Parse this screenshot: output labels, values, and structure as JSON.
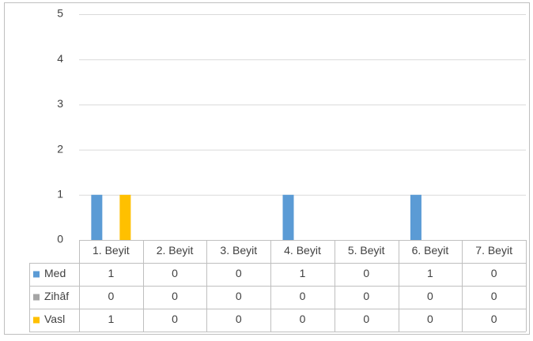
{
  "chart_data": {
    "type": "bar",
    "categories": [
      "1. Beyit",
      "2. Beyit",
      "3. Beyit",
      "4. Beyit",
      "5. Beyit",
      "6. Beyit",
      "7. Beyit"
    ],
    "series": [
      {
        "name": "Med",
        "color": "#5b9bd5",
        "values": [
          1,
          0,
          0,
          1,
          0,
          1,
          0
        ]
      },
      {
        "name": "Zihâf",
        "color": "#a5a5a5",
        "values": [
          0,
          0,
          0,
          0,
          0,
          0,
          0
        ]
      },
      {
        "name": "Vasl",
        "color": "#ffc000",
        "values": [
          1,
          0,
          0,
          0,
          0,
          0,
          0
        ]
      }
    ],
    "ylim": [
      0,
      5
    ],
    "yticks": [
      0,
      1,
      2,
      3,
      4,
      5
    ],
    "grid": true,
    "data_table": true
  }
}
